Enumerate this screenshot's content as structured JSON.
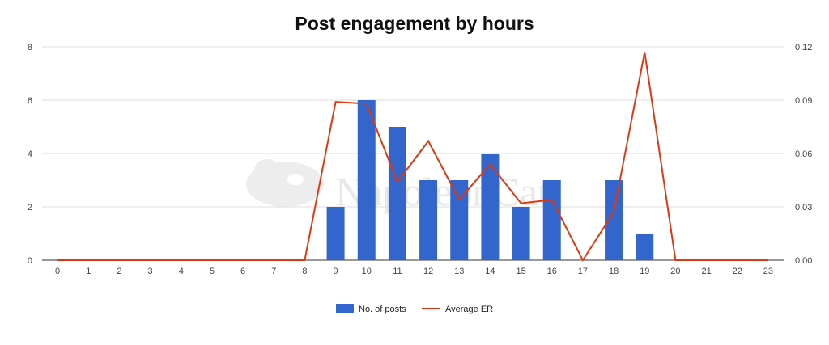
{
  "chart_data": {
    "type": "bar",
    "title": "Post engagement by hours",
    "watermark": "NapoleonCat.",
    "categories": [
      "0",
      "1",
      "2",
      "3",
      "4",
      "5",
      "6",
      "7",
      "8",
      "9",
      "10",
      "11",
      "12",
      "13",
      "14",
      "15",
      "16",
      "17",
      "18",
      "19",
      "20",
      "21",
      "22",
      "23"
    ],
    "series": [
      {
        "name": "No. of posts",
        "type": "bar",
        "axis": "left",
        "color": "#3366cc",
        "values": [
          0,
          0,
          0,
          0,
          0,
          0,
          0,
          0,
          0,
          2,
          6,
          5,
          3,
          3,
          4,
          2,
          3,
          0,
          3,
          1,
          0,
          0,
          0,
          0
        ]
      },
      {
        "name": "Average ER",
        "type": "line",
        "axis": "right",
        "color": "#dc3912",
        "values": [
          0,
          0,
          0,
          0,
          0,
          0,
          0,
          0,
          0,
          0.089,
          0.088,
          0.044,
          0.067,
          0.034,
          0.054,
          0.032,
          0.034,
          0,
          0.027,
          0.117,
          0,
          0,
          0,
          0
        ]
      }
    ],
    "y_left": {
      "range": [
        0,
        8
      ],
      "ticks": [
        "0",
        "2",
        "4",
        "6",
        "8"
      ]
    },
    "y_right": {
      "range": [
        0,
        0.12
      ],
      "ticks": [
        "0.00",
        "0.03",
        "0.06",
        "0.09",
        "0.12"
      ]
    },
    "grid": true,
    "legend": "bottom"
  }
}
